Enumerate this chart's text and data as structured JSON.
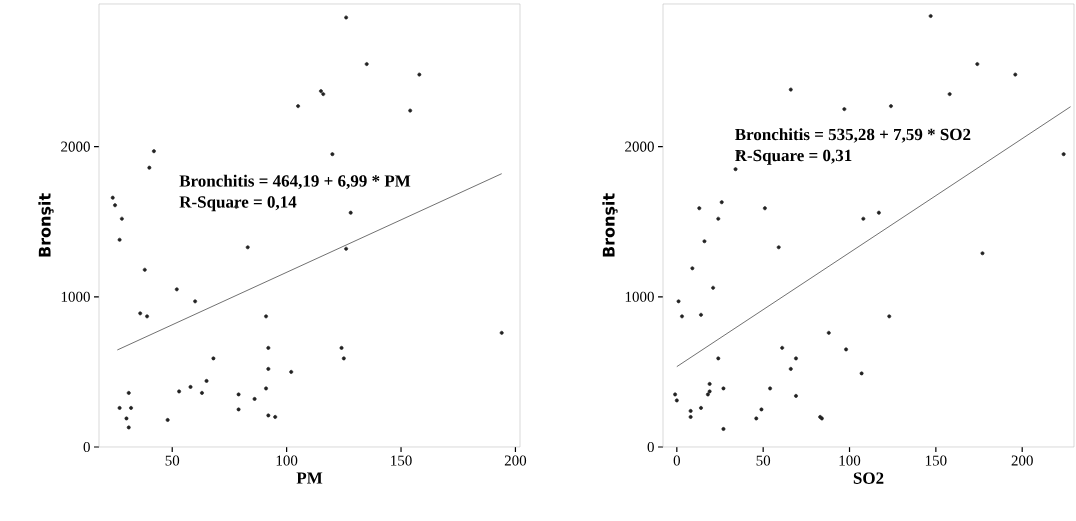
{
  "chart_data": [
    {
      "type": "scatter",
      "xlabel": "PM",
      "ylabel": "Bronşit",
      "xlim": [
        18,
        202
      ],
      "ylim": [
        0,
        2950
      ],
      "xticks": [
        50,
        100,
        150,
        200
      ],
      "yticks": [
        0,
        1000,
        2000
      ],
      "annotations": [
        "Bronchitis = 464,19 + 6,99 * PM",
        "R-Square = 0,14"
      ],
      "series": [
        {
          "type": "scatter",
          "color": "#222222",
          "marker": "circle",
          "x": [
            126,
            135,
            158,
            115,
            116,
            105,
            154,
            42,
            40,
            120,
            24,
            25,
            28,
            27,
            78,
            128,
            83,
            126,
            38,
            52,
            60,
            36,
            39,
            91,
            194,
            92,
            124,
            125,
            68,
            92,
            102,
            65,
            58,
            91,
            53,
            63,
            79,
            31,
            86,
            27,
            32,
            79,
            30,
            48,
            92,
            95,
            31
          ],
          "values": [
            2860,
            2550,
            2480,
            2370,
            2350,
            2270,
            2240,
            1970,
            1860,
            1950,
            1660,
            1610,
            1520,
            1380,
            1600,
            1560,
            1330,
            1320,
            1180,
            1050,
            970,
            890,
            870,
            870,
            760,
            660,
            660,
            590,
            590,
            520,
            500,
            440,
            400,
            390,
            370,
            360,
            350,
            360,
            320,
            260,
            260,
            250,
            190,
            180,
            210,
            200,
            130
          ]
        },
        {
          "type": "line",
          "color": "#333333",
          "marker": "none",
          "line_style": "solid",
          "x": [
            26,
            194
          ],
          "values": [
            646,
            1820
          ]
        }
      ]
    },
    {
      "type": "scatter",
      "xlabel": "SO2",
      "ylabel": "Bronşit",
      "xlim": [
        -8,
        230
      ],
      "ylim": [
        0,
        2950
      ],
      "xticks": [
        0,
        50,
        100,
        150,
        200
      ],
      "yticks": [
        0,
        1000,
        2000
      ],
      "annotations": [
        "Bronchitis = 535,28 + 7,59 * SO2",
        "R-Square = 0,31"
      ],
      "series": [
        {
          "type": "scatter",
          "color": "#222222",
          "marker": "circle",
          "x": [
            147,
            174,
            196,
            66,
            158,
            97,
            124,
            224,
            36,
            34,
            13,
            26,
            24,
            51,
            108,
            117,
            16,
            59,
            177,
            9,
            21,
            1,
            3,
            14,
            123,
            88,
            98,
            61,
            24,
            69,
            66,
            107,
            19,
            19,
            18,
            27,
            54,
            -1,
            0,
            69,
            8,
            8,
            14,
            49,
            46,
            83,
            84,
            27
          ],
          "values": [
            2870,
            2550,
            2480,
            2380,
            2350,
            2250,
            2270,
            1950,
            1960,
            1850,
            1590,
            1630,
            1520,
            1590,
            1520,
            1560,
            1370,
            1330,
            1290,
            1190,
            1060,
            970,
            870,
            880,
            870,
            760,
            650,
            660,
            590,
            590,
            520,
            490,
            420,
            370,
            350,
            390,
            390,
            350,
            310,
            340,
            240,
            200,
            260,
            250,
            190,
            200,
            190,
            120
          ]
        },
        {
          "type": "line",
          "color": "#333333",
          "marker": "none",
          "line_style": "solid",
          "x": [
            0,
            228
          ],
          "values": [
            535,
            2266
          ]
        }
      ]
    }
  ]
}
